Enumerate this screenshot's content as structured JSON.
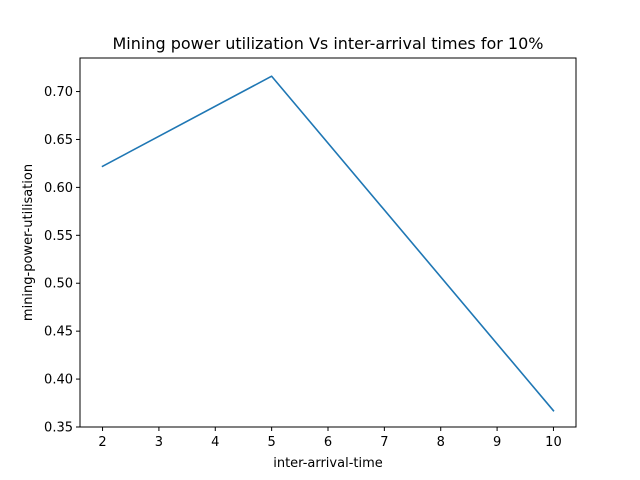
{
  "chart_data": {
    "type": "line",
    "title": "Mining power utilization Vs inter-arrival times for 10%",
    "xlabel": "inter-arrival-time",
    "ylabel": "mining-power-utilisation",
    "xlim": [
      1.6,
      10.4
    ],
    "ylim": [
      0.35,
      0.735
    ],
    "xticks": [
      2,
      3,
      4,
      5,
      6,
      7,
      8,
      9,
      10
    ],
    "yticks": [
      0.35,
      0.4,
      0.45,
      0.5,
      0.55,
      0.6,
      0.65,
      0.7
    ],
    "grid": false,
    "series": [
      {
        "color": "#1f77b4",
        "x": [
          2,
          5,
          10
        ],
        "y": [
          0.622,
          0.716,
          0.367
        ]
      }
    ]
  }
}
